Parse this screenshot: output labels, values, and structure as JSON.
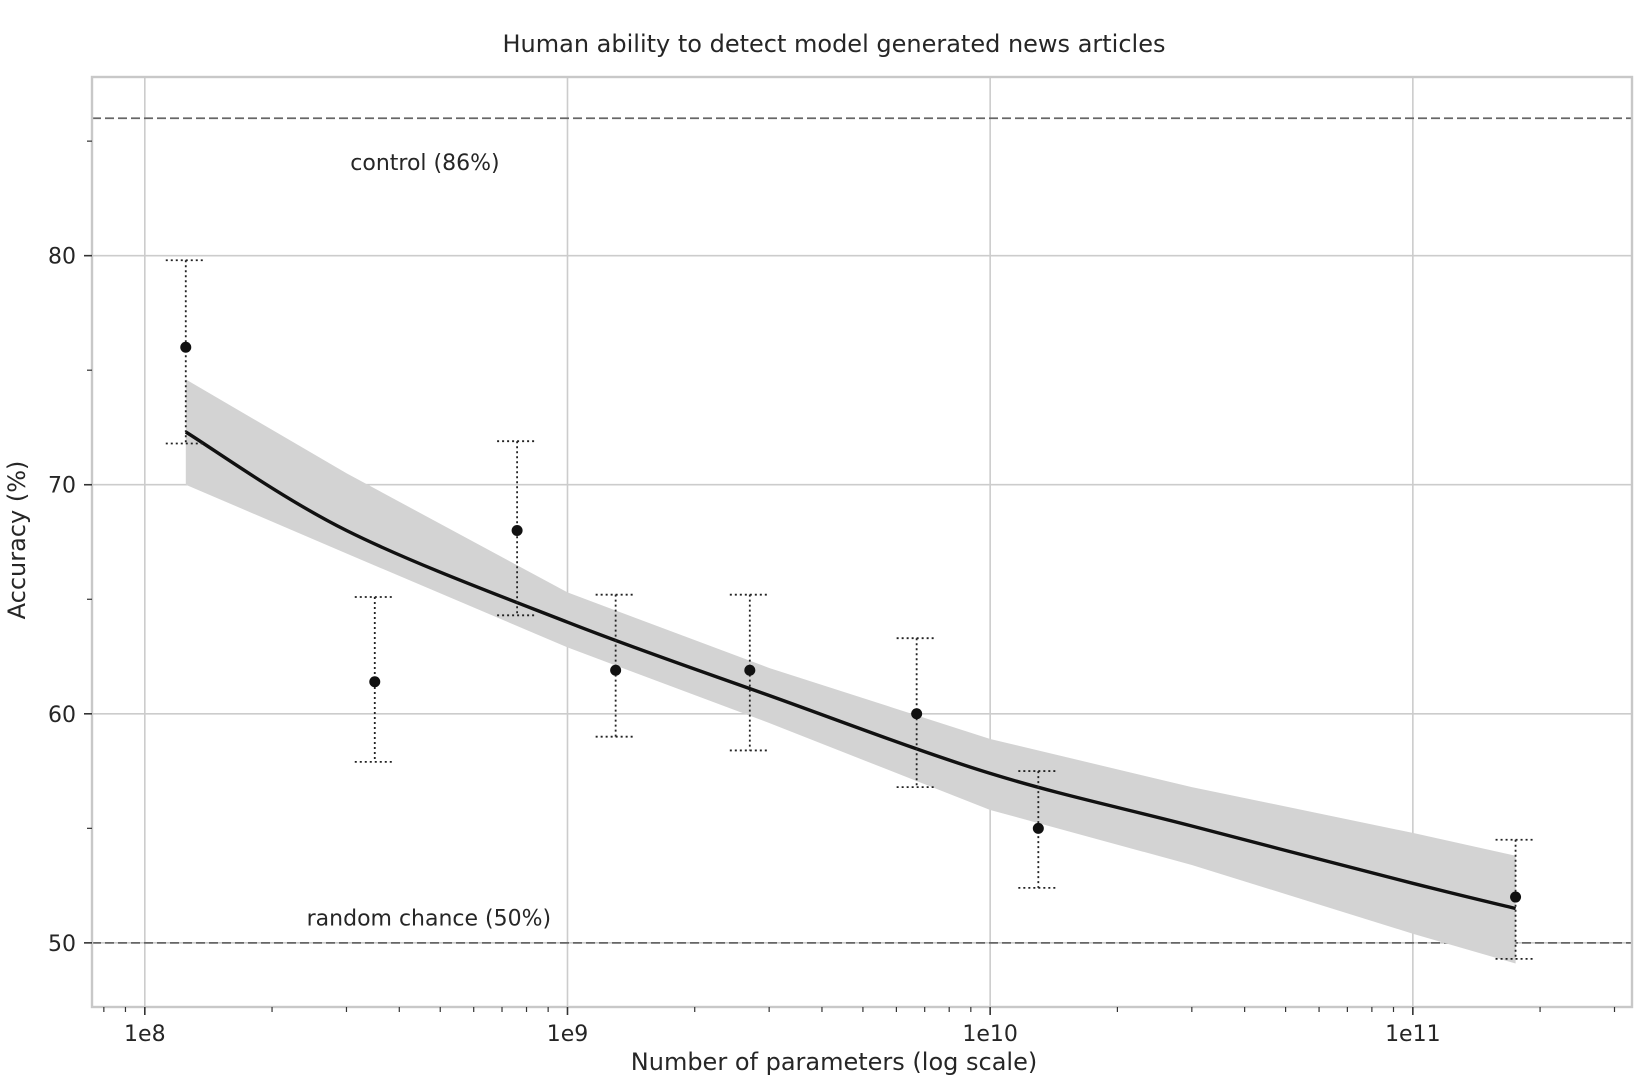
{
  "chart_data": {
    "type": "scatter",
    "title": "Human ability to detect model generated news articles",
    "xlabel": "Number of parameters (log scale)",
    "ylabel": "Accuracy (%)",
    "x_scale": "log",
    "xlim": [
      75000000,
      330000000000
    ],
    "ylim": [
      47.2,
      87.8
    ],
    "x_major_ticks": [
      100000000,
      1000000000,
      10000000000,
      100000000000
    ],
    "x_tick_labels": [
      "1e8",
      "1e9",
      "1e10",
      "1e11"
    ],
    "y_major_ticks": [
      50,
      60,
      70,
      80
    ],
    "y_tick_labels": [
      "50",
      "60",
      "70",
      "80"
    ],
    "y_minor_ticks": [
      55,
      65,
      75,
      85
    ],
    "grid": true,
    "reference_lines": [
      {
        "y": 86,
        "label": "control (86%)",
        "style": "dashed",
        "label_x": 460000000,
        "label_y": 84.1
      },
      {
        "y": 50,
        "label": "random chance (50%)",
        "style": "dashed",
        "label_x": 470000000,
        "label_y": 51.1
      }
    ],
    "points": [
      {
        "x": 125000000,
        "y": 76.0,
        "ci": [
          71.8,
          79.8
        ]
      },
      {
        "x": 350000000,
        "y": 61.4,
        "ci": [
          57.9,
          65.1
        ]
      },
      {
        "x": 760000000,
        "y": 68.0,
        "ci": [
          64.3,
          71.9
        ]
      },
      {
        "x": 1300000000,
        "y": 61.9,
        "ci": [
          59.0,
          65.2
        ]
      },
      {
        "x": 2700000000,
        "y": 61.9,
        "ci": [
          58.4,
          65.2
        ]
      },
      {
        "x": 6700000000,
        "y": 60.0,
        "ci": [
          56.8,
          63.3
        ]
      },
      {
        "x": 13000000000,
        "y": 55.0,
        "ci": [
          52.4,
          57.5
        ]
      },
      {
        "x": 175000000000,
        "y": 52.0,
        "ci": [
          49.3,
          54.5
        ]
      }
    ],
    "fit": {
      "x": [
        125000000,
        300000000,
        1000000000,
        3000000000,
        10000000000,
        30000000000,
        100000000000,
        175000000000
      ],
      "y": [
        72.3,
        68.0,
        64.0,
        60.8,
        57.4,
        55.1,
        52.6,
        51.5
      ],
      "ci_lower": [
        70.0,
        67.0,
        62.9,
        59.6,
        55.8,
        53.4,
        50.4,
        49.1
      ],
      "ci_upper": [
        74.6,
        70.5,
        65.3,
        62.0,
        58.9,
        56.8,
        54.8,
        53.8
      ]
    },
    "colors": {
      "points": "#111111",
      "fit_line": "#111111",
      "fit_band": "#d3d3d3",
      "reference_lines": "#666666",
      "grid": "#cccccc",
      "frame": "#c8c8c8"
    }
  }
}
